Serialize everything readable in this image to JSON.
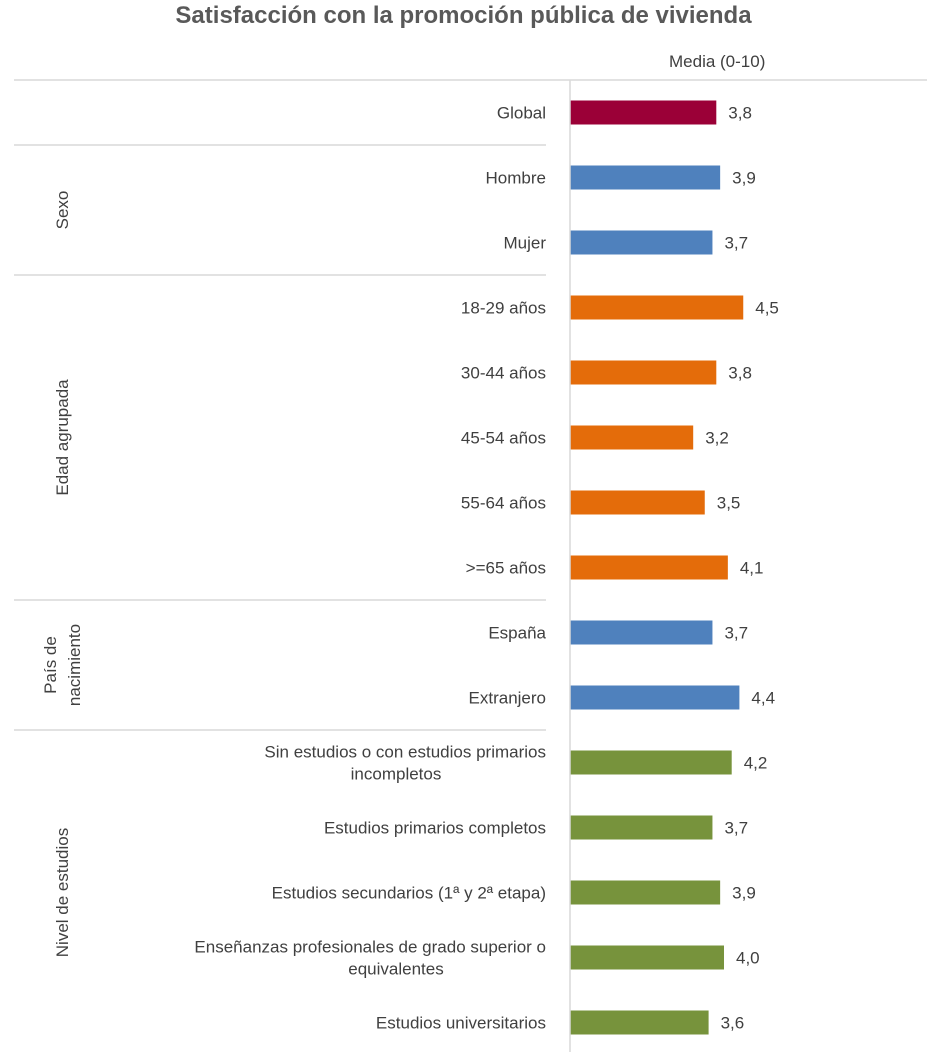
{
  "chart_data": {
    "type": "bar",
    "orientation": "horizontal",
    "title": "Satisfacción con la promoción pública de vivienda",
    "subtitle": "Media (0-10)",
    "xlim": [
      0,
      10
    ],
    "grid": false,
    "legend": "none",
    "groups": [
      {
        "label": "",
        "color": "#9B0037",
        "items": [
          {
            "label": "Global",
            "value": 3.8,
            "value_label": "3,8"
          }
        ]
      },
      {
        "label": "Sexo",
        "color": "#4F81BD",
        "items": [
          {
            "label": "Hombre",
            "value": 3.9,
            "value_label": "3,9"
          },
          {
            "label": "Mujer",
            "value": 3.7,
            "value_label": "3,7"
          }
        ]
      },
      {
        "label": "Edad agrupada",
        "color": "#E46C0A",
        "items": [
          {
            "label": "18-29 años",
            "value": 4.5,
            "value_label": "4,5"
          },
          {
            "label": "30-44 años",
            "value": 3.8,
            "value_label": "3,8"
          },
          {
            "label": "45-54 años",
            "value": 3.2,
            "value_label": "3,2"
          },
          {
            "label": "55-64 años",
            "value": 3.5,
            "value_label": "3,5"
          },
          {
            "label": ">=65 años",
            "value": 4.1,
            "value_label": "4,1"
          }
        ]
      },
      {
        "label": "País de nacimiento",
        "label_lines": [
          "País de",
          "nacimiento"
        ],
        "color": "#4F81BD",
        "items": [
          {
            "label": "España",
            "value": 3.7,
            "value_label": "3,7"
          },
          {
            "label": "Extranjero",
            "value": 4.4,
            "value_label": "4,4"
          }
        ]
      },
      {
        "label": "Nivel de estudios",
        "color": "#77933C",
        "items": [
          {
            "label": "Sin estudios o con estudios primarios incompletos",
            "label_lines": [
              "Sin estudios o con estudios primarios",
              "incompletos"
            ],
            "value": 4.2,
            "value_label": "4,2"
          },
          {
            "label": "Estudios primarios completos",
            "value": 3.7,
            "value_label": "3,7"
          },
          {
            "label": "Estudios secundarios (1ª y 2ª etapa)",
            "value": 3.9,
            "value_label": "3,9"
          },
          {
            "label": "Enseñanzas profesionales de grado superior o equivalentes",
            "label_lines": [
              "Enseñanzas profesionales de grado superior o",
              "equivalentes"
            ],
            "value": 4.0,
            "value_label": "4,0"
          },
          {
            "label": "Estudios universitarios",
            "value": 3.6,
            "value_label": "3,6"
          }
        ]
      }
    ]
  }
}
